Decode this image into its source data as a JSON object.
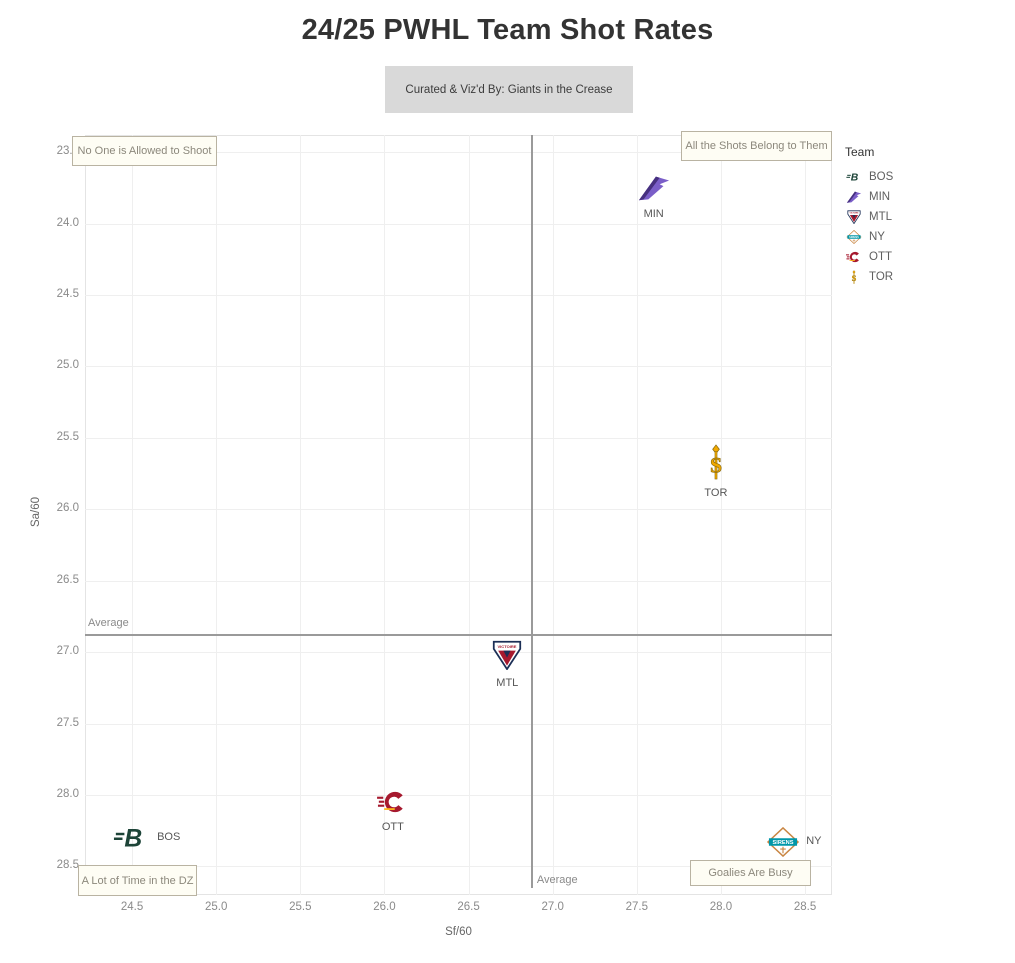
{
  "title": "24/25 PWHL Team Shot Rates",
  "credit": "Curated & Viz'd By: Giants in the Crease",
  "legend": {
    "title": "Team",
    "items": [
      "BOS",
      "MIN",
      "MTL",
      "NY",
      "OTT",
      "TOR"
    ]
  },
  "colors": {
    "average_line": "#9a9a9a",
    "gridline": "#efefef",
    "annotation_bg": "#fefdf4",
    "annotation_border": "#b9b3a2",
    "annotation_text": "#8c887c",
    "credit_bg": "#d9d9d9",
    "title_text": "#333333",
    "tick_text": "#8a8a8a",
    "teams": {
      "BOS": {
        "primary": "#1d4438",
        "secondary": "#0e2a22"
      },
      "MIN": {
        "primary": "#7a5ec8",
        "secondary": "#46307f"
      },
      "MTL": {
        "primary": "#a6192e",
        "secondary": "#1c2f56"
      },
      "NY": {
        "primary": "#0097a9",
        "secondary": "#c98643"
      },
      "OTT": {
        "primary": "#a6192e",
        "secondary": "#ffb81c"
      },
      "TOR": {
        "primary": "#f2a900",
        "secondary": "#8a6c10"
      }
    }
  },
  "chart_data": {
    "type": "scatter",
    "title": "24/25 PWHL Team Shot Rates",
    "xlabel": "Sf/60",
    "ylabel": "Sa/60",
    "xlim": [
      24.22,
      28.66
    ],
    "ylim": [
      23.38,
      28.7
    ],
    "y_inverted": true,
    "grid": true,
    "legend_position": "right",
    "x_ticks": [
      24.5,
      25.0,
      25.5,
      26.0,
      26.5,
      27.0,
      27.5,
      28.0,
      28.5
    ],
    "y_ticks": [
      23.5,
      24.0,
      24.5,
      25.0,
      25.5,
      26.0,
      26.5,
      27.0,
      27.5,
      28.0,
      28.5
    ],
    "average_x": 26.87,
    "average_y": 26.87,
    "average_label": "Average",
    "points": [
      {
        "team": "MIN",
        "sf60": 27.6,
        "sa60": 23.75,
        "label_pos": "below"
      },
      {
        "team": "TOR",
        "sf60": 27.97,
        "sa60": 25.67,
        "label_pos": "below"
      },
      {
        "team": "MTL",
        "sf60": 26.73,
        "sa60": 27.02,
        "label_pos": "below"
      },
      {
        "team": "OTT",
        "sf60": 26.05,
        "sa60": 28.05,
        "label_pos": "below"
      },
      {
        "team": "BOS",
        "sf60": 24.5,
        "sa60": 28.3,
        "label_pos": "right"
      },
      {
        "team": "NY",
        "sf60": 28.37,
        "sa60": 28.33,
        "label_pos": "right"
      }
    ],
    "annotations": [
      {
        "text": "No One is Allowed to Shoot",
        "corner": "top-left"
      },
      {
        "text": "All the Shots Belong to Them",
        "corner": "top-right"
      },
      {
        "text": "A Lot of Time in the DZ",
        "corner": "bottom-left"
      },
      {
        "text": "Goalies Are Busy",
        "corner": "bottom-right"
      }
    ]
  }
}
